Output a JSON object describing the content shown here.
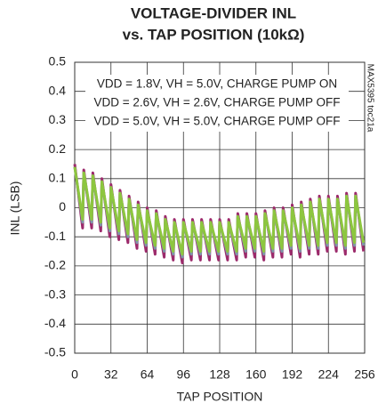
{
  "chart_data": {
    "type": "line",
    "title": [
      "VOLTAGE-DIVIDER INL",
      "vs. TAP POSITION (10kΩ)"
    ],
    "x_label": "TAP POSITION",
    "y_label": "INL (LSB)",
    "figure_id": "MAX5395 toc21a",
    "xlim": [
      0,
      256
    ],
    "xticks": [
      0,
      32,
      64,
      96,
      128,
      160,
      192,
      224,
      256
    ],
    "ylim": [
      -0.5,
      0.5
    ],
    "yticks": [
      0.5,
      0.4,
      0.3,
      0.2,
      0.1,
      0,
      -0.1,
      -0.2,
      -0.3,
      -0.4,
      -0.5
    ],
    "grid": true,
    "x": [
      0,
      7,
      8,
      15,
      16,
      23,
      24,
      31,
      32,
      39,
      40,
      47,
      48,
      55,
      56,
      63,
      64,
      71,
      72,
      79,
      80,
      87,
      88,
      95,
      96,
      103,
      104,
      111,
      112,
      119,
      120,
      127,
      128,
      135,
      136,
      143,
      144,
      151,
      152,
      159,
      160,
      167,
      168,
      175,
      176,
      183,
      184,
      191,
      192,
      199,
      200,
      207,
      208,
      215,
      216,
      223,
      224,
      231,
      232,
      239,
      240,
      247,
      248,
      255
    ],
    "series": [
      {
        "name": "VDD = 1.8V, VH = 5.0V, CHARGE PUMP ON",
        "color": "#9c2a6b",
        "values": [
          0.15,
          -0.07,
          0.13,
          -0.07,
          0.12,
          -0.08,
          0.1,
          -0.1,
          0.08,
          -0.11,
          0.06,
          -0.12,
          0.04,
          -0.14,
          0.02,
          -0.15,
          0,
          -0.16,
          -0.01,
          -0.17,
          -0.03,
          -0.18,
          -0.04,
          -0.19,
          -0.04,
          -0.18,
          -0.04,
          -0.18,
          -0.04,
          -0.18,
          -0.04,
          -0.18,
          -0.04,
          -0.18,
          -0.04,
          -0.18,
          -0.02,
          -0.17,
          -0.02,
          -0.17,
          -0.02,
          -0.18,
          -0.01,
          -0.17,
          0,
          -0.17,
          0,
          -0.16,
          0.01,
          -0.17,
          0.02,
          -0.16,
          0.03,
          -0.16,
          0.04,
          -0.15,
          0.04,
          -0.15,
          0.04,
          -0.16,
          0.05,
          -0.15,
          0.05,
          -0.15
        ]
      },
      {
        "name": "VDD = 2.6V, VH = 2.6V, CHARGE PUMP OFF",
        "color": "#7f95a8",
        "values": [
          0.14,
          -0.05,
          0.12,
          -0.05,
          0.11,
          -0.06,
          0.09,
          -0.08,
          0.07,
          -0.09,
          0.05,
          -0.1,
          0.03,
          -0.12,
          0.01,
          -0.13,
          -0.01,
          -0.14,
          -0.02,
          -0.15,
          -0.04,
          -0.16,
          -0.05,
          -0.17,
          -0.05,
          -0.16,
          -0.05,
          -0.16,
          -0.05,
          -0.16,
          -0.05,
          -0.16,
          -0.05,
          -0.16,
          -0.05,
          -0.16,
          -0.03,
          -0.15,
          -0.03,
          -0.15,
          -0.03,
          -0.16,
          -0.02,
          -0.15,
          -0.01,
          -0.15,
          -0.01,
          -0.14,
          0,
          -0.15,
          0.01,
          -0.14,
          0.02,
          -0.14,
          0.03,
          -0.13,
          0.03,
          -0.13,
          0.03,
          -0.14,
          0.04,
          -0.13,
          0.04,
          -0.13
        ]
      },
      {
        "name": "VDD = 5.0V, VH = 5.0V, CHARGE PUMP OFF",
        "color": "#8dc63f",
        "values": [
          0.14,
          -0.04,
          0.12,
          -0.04,
          0.11,
          -0.05,
          0.09,
          -0.07,
          0.07,
          -0.08,
          0.05,
          -0.09,
          0.03,
          -0.11,
          0.01,
          -0.12,
          -0.01,
          -0.13,
          -0.02,
          -0.14,
          -0.04,
          -0.15,
          -0.05,
          -0.16,
          -0.05,
          -0.15,
          -0.05,
          -0.15,
          -0.05,
          -0.15,
          -0.05,
          -0.15,
          -0.05,
          -0.15,
          -0.05,
          -0.15,
          -0.03,
          -0.14,
          -0.03,
          -0.14,
          -0.03,
          -0.15,
          -0.02,
          -0.14,
          -0.01,
          -0.14,
          -0.01,
          -0.13,
          0,
          -0.14,
          0.01,
          -0.13,
          0.02,
          -0.13,
          0.03,
          -0.12,
          0.03,
          -0.12,
          0.03,
          -0.13,
          0.04,
          -0.12,
          0.04,
          -0.12
        ]
      }
    ]
  }
}
